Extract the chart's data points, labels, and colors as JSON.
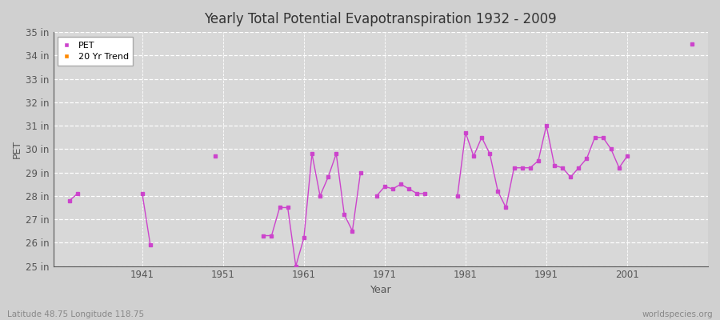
{
  "title": "Yearly Total Potential Evapotranspiration 1932 - 2009",
  "xlabel": "Year",
  "ylabel": "PET",
  "subtitle_left": "Latitude 48.75 Longitude 118.75",
  "subtitle_right": "worldspecies.org",
  "background_color": "#d0d0d0",
  "plot_bg_color": "#d8d8d8",
  "line_color": "#cc44cc",
  "trend_color": "#ff8800",
  "ylim": [
    25,
    35
  ],
  "ytick_labels": [
    "25 in",
    "26 in",
    "27 in",
    "28 in",
    "29 in",
    "30 in",
    "31 in",
    "32 in",
    "33 in",
    "34 in",
    "35 in"
  ],
  "ytick_values": [
    25,
    26,
    27,
    28,
    29,
    30,
    31,
    32,
    33,
    34,
    35
  ],
  "xlim": [
    1930,
    2011
  ],
  "xtick_values": [
    1941,
    1951,
    1961,
    1971,
    1981,
    1991,
    2001
  ],
  "years": [
    1932,
    1933,
    1941,
    1942,
    1950,
    1956,
    1957,
    1958,
    1959,
    1960,
    1961,
    1962,
    1963,
    1964,
    1965,
    1966,
    1967,
    1968,
    1970,
    1971,
    1972,
    1973,
    1974,
    1975,
    1976,
    1980,
    1981,
    1982,
    1983,
    1984,
    1985,
    1986,
    1987,
    1988,
    1989,
    1990,
    1991,
    1992,
    1993,
    1994,
    1995,
    1996,
    1997,
    1998,
    1999,
    2000,
    2001,
    2009
  ],
  "pet_values": [
    27.8,
    28.1,
    28.1,
    25.9,
    29.7,
    26.3,
    26.3,
    27.5,
    27.5,
    25.0,
    26.2,
    29.8,
    28.0,
    28.8,
    29.8,
    27.2,
    26.5,
    29.0,
    28.0,
    28.4,
    28.3,
    28.5,
    28.3,
    28.1,
    28.1,
    28.0,
    30.7,
    29.7,
    30.5,
    29.8,
    28.2,
    27.5,
    29.2,
    29.2,
    29.2,
    29.5,
    31.0,
    29.3,
    29.2,
    28.8,
    29.2,
    29.6,
    30.5,
    30.5,
    30.0,
    29.2,
    29.7,
    34.5
  ],
  "connected_segments": [
    [
      1932,
      1933
    ],
    [
      1941,
      1942
    ],
    [
      1956,
      1957,
      1958,
      1959,
      1960,
      1961,
      1962,
      1963,
      1964,
      1965,
      1966,
      1967,
      1968
    ],
    [
      1970,
      1971,
      1972,
      1973,
      1974,
      1975,
      1976
    ],
    [
      1980,
      1981,
      1982,
      1983,
      1984,
      1985,
      1986,
      1987,
      1988,
      1989,
      1990,
      1991,
      1992,
      1993,
      1994,
      1995,
      1996,
      1997,
      1998,
      1999,
      2000,
      2001
    ]
  ]
}
